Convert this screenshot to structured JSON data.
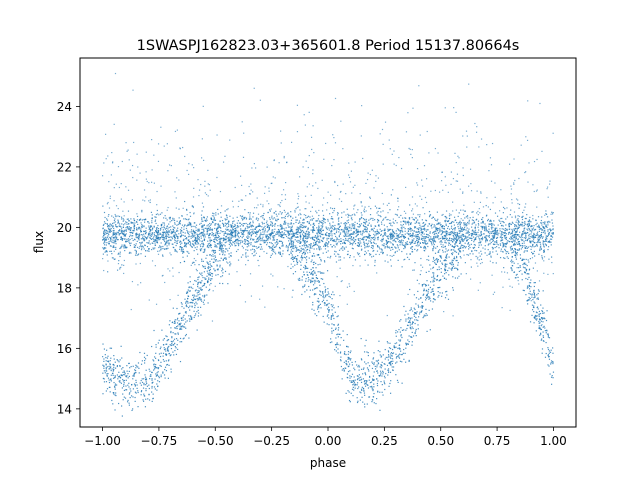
{
  "chart_data": {
    "type": "scatter",
    "title": "1SWASPJ162823.03+365601.8 Period 15137.80664s",
    "xlabel": "phase",
    "ylabel": "flux",
    "xlim": [
      -1.1,
      1.1
    ],
    "ylim": [
      13.4,
      25.6
    ],
    "xticks": [
      -1.0,
      -0.75,
      -0.5,
      -0.25,
      0.0,
      0.25,
      0.5,
      0.75,
      1.0
    ],
    "xtick_labels": [
      "−1.00",
      "−0.75",
      "−0.50",
      "−0.25",
      "0.00",
      "0.25",
      "0.50",
      "0.75",
      "1.00"
    ],
    "yticks": [
      14,
      16,
      18,
      20,
      22,
      24
    ],
    "ytick_labels": [
      "14",
      "16",
      "18",
      "20",
      "22",
      "24"
    ],
    "grid": false,
    "marker_color": "#1f77b4",
    "series": [
      {
        "baseline_flux": 19.75,
        "eclipse_profile": {
          "phase": [
            -1.0,
            -0.95,
            -0.9,
            -0.85,
            -0.8,
            -0.75,
            -0.7,
            -0.65,
            -0.6,
            -0.55,
            -0.5,
            -0.45,
            -0.4,
            -0.35,
            -0.3,
            -0.25,
            -0.2,
            0.0,
            0.05,
            0.1,
            0.15,
            0.2,
            0.25,
            0.3,
            0.35,
            0.4,
            0.45,
            0.5,
            0.55,
            0.6,
            0.65,
            0.7,
            0.8,
            0.85,
            0.9,
            0.95,
            1.0
          ],
          "flux": [
            15.4,
            15.0,
            14.9,
            14.9,
            15.0,
            15.5,
            16.1,
            16.8,
            17.6,
            18.3,
            18.9,
            19.3,
            19.6,
            19.75,
            19.75,
            19.75,
            19.75,
            17.6,
            16.0,
            15.1,
            14.9,
            14.9,
            15.3,
            15.8,
            16.5,
            17.2,
            17.9,
            18.6,
            19.1,
            19.5,
            19.75,
            19.75,
            19.6,
            18.9,
            17.9,
            16.8,
            15.4
          ]
        }
      }
    ]
  }
}
